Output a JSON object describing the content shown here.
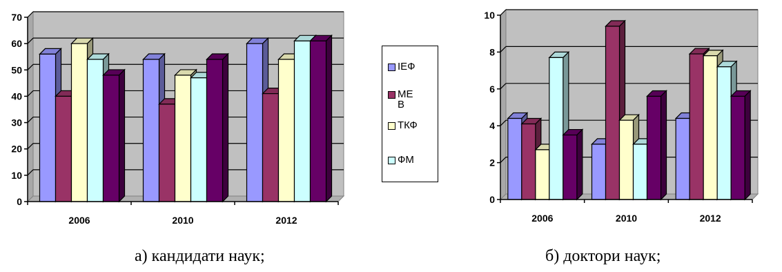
{
  "chart_data": [
    {
      "type": "bar",
      "categories": [
        "2006",
        "2010",
        "2012"
      ],
      "series": [
        {
          "name": "ІЕФ",
          "values": [
            56,
            54,
            60
          ],
          "color": "#9999ff"
        },
        {
          "name": "МЕВ",
          "values": [
            40,
            37,
            41
          ],
          "color": "#993366"
        },
        {
          "name": "ТКФ",
          "values": [
            60,
            48,
            54
          ],
          "color": "#ffffcc"
        },
        {
          "name": "ФМ",
          "values": [
            54,
            47,
            61
          ],
          "color": "#ccffff"
        },
        {
          "name": "",
          "values": [
            48,
            54,
            61
          ],
          "color": "#660066"
        }
      ],
      "yticks": [
        0,
        10,
        20,
        30,
        40,
        50,
        60,
        70
      ],
      "ylim": [
        0,
        70
      ],
      "grid": true,
      "wall_color": "#c0c0c0",
      "caption": "а) кандидати наук;"
    },
    {
      "type": "bar",
      "categories": [
        "2006",
        "2010",
        "2012"
      ],
      "series": [
        {
          "name": "ІЕФ",
          "values": [
            4.4,
            3.0,
            4.4
          ],
          "color": "#9999ff"
        },
        {
          "name": "МЕВ",
          "values": [
            4.1,
            9.4,
            7.9
          ],
          "color": "#993366"
        },
        {
          "name": "ТКФ",
          "values": [
            2.7,
            4.3,
            7.8
          ],
          "color": "#ffffcc"
        },
        {
          "name": "ФМ",
          "values": [
            7.7,
            3.0,
            7.2
          ],
          "color": "#ccffff"
        },
        {
          "name": "",
          "values": [
            3.5,
            5.6,
            5.6
          ],
          "color": "#660066"
        }
      ],
      "yticks": [
        0,
        2,
        4,
        6,
        8,
        10
      ],
      "ylim": [
        0,
        10
      ],
      "grid": true,
      "wall_color": "#c0c0c0",
      "caption": "б) доктори наук;"
    }
  ],
  "legend": {
    "items": [
      {
        "label": "ІЕФ",
        "color": "#9999ff"
      },
      {
        "label": "МЕ\nВ",
        "color": "#993366"
      },
      {
        "label": "ТКФ",
        "color": "#ffffcc"
      },
      {
        "label": "ФМ",
        "color": "#ccffff"
      }
    ]
  }
}
